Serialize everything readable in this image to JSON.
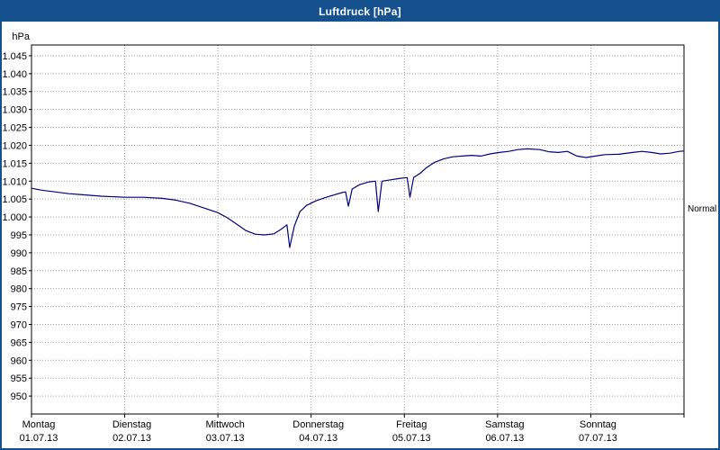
{
  "window": {
    "title": "Luftdruck [hPa]",
    "titlebar_color": "#15518f"
  },
  "colors": {
    "line": "#000080",
    "grid": "#9a9a9a",
    "axis": "#000000",
    "plot_border": "#000000",
    "text": "#000000"
  },
  "chart_data": {
    "type": "line",
    "title": "Luftdruck [hPa]",
    "ylabel": "hPa",
    "xlabel": "",
    "ylim": [
      945,
      1048
    ],
    "xlim": [
      0,
      7
    ],
    "grid": "dotted",
    "legend_position": "none",
    "yticks": [
      {
        "value": 1045,
        "label": "1.045"
      },
      {
        "value": 1040,
        "label": "1.040"
      },
      {
        "value": 1035,
        "label": "1.035"
      },
      {
        "value": 1030,
        "label": "1.030"
      },
      {
        "value": 1025,
        "label": "1.025"
      },
      {
        "value": 1020,
        "label": "1.020"
      },
      {
        "value": 1015,
        "label": "1.015"
      },
      {
        "value": 1010,
        "label": "1.010"
      },
      {
        "value": 1005,
        "label": "1.005"
      },
      {
        "value": 1000,
        "label": "1.000"
      },
      {
        "value": 995,
        "label": "995"
      },
      {
        "value": 990,
        "label": "990"
      },
      {
        "value": 985,
        "label": "985"
      },
      {
        "value": 980,
        "label": "980"
      },
      {
        "value": 975,
        "label": "975"
      },
      {
        "value": 970,
        "label": "970"
      },
      {
        "value": 965,
        "label": "965"
      },
      {
        "value": 960,
        "label": "960"
      },
      {
        "value": 955,
        "label": "955"
      },
      {
        "value": 950,
        "label": "950"
      }
    ],
    "days": [
      {
        "name": "Montag",
        "date": "01.07.13"
      },
      {
        "name": "Dienstag",
        "date": "02.07.13"
      },
      {
        "name": "Mittwoch",
        "date": "03.07.13"
      },
      {
        "name": "Donnerstag",
        "date": "04.07.13"
      },
      {
        "name": "Freitag",
        "date": "05.07.13"
      },
      {
        "name": "Samstag",
        "date": "06.07.13"
      },
      {
        "name": "Sonntag",
        "date": "07.07.13"
      }
    ],
    "series": [
      {
        "name": "Luftdruck",
        "color": "#000080",
        "points": [
          [
            0.0,
            1008.0
          ],
          [
            0.1,
            1007.5
          ],
          [
            0.25,
            1007.0
          ],
          [
            0.4,
            1006.5
          ],
          [
            0.55,
            1006.2
          ],
          [
            0.75,
            1005.8
          ],
          [
            1.0,
            1005.5
          ],
          [
            1.2,
            1005.5
          ],
          [
            1.4,
            1005.2
          ],
          [
            1.55,
            1004.7
          ],
          [
            1.7,
            1003.8
          ],
          [
            1.85,
            1002.5
          ],
          [
            2.0,
            1001.2
          ],
          [
            2.1,
            999.8
          ],
          [
            2.2,
            998.0
          ],
          [
            2.3,
            996.2
          ],
          [
            2.4,
            995.2
          ],
          [
            2.5,
            995.0
          ],
          [
            2.6,
            995.3
          ],
          [
            2.68,
            996.6
          ],
          [
            2.74,
            997.8
          ],
          [
            2.77,
            991.5
          ],
          [
            2.82,
            997.5
          ],
          [
            2.88,
            1001.5
          ],
          [
            2.95,
            1003.2
          ],
          [
            3.05,
            1004.5
          ],
          [
            3.15,
            1005.4
          ],
          [
            3.25,
            1006.2
          ],
          [
            3.33,
            1006.8
          ],
          [
            3.37,
            1007.0
          ],
          [
            3.4,
            1003.0
          ],
          [
            3.44,
            1007.8
          ],
          [
            3.52,
            1009.0
          ],
          [
            3.62,
            1009.8
          ],
          [
            3.69,
            1010.0
          ],
          [
            3.72,
            1001.5
          ],
          [
            3.76,
            1010.0
          ],
          [
            3.86,
            1010.4
          ],
          [
            3.96,
            1010.8
          ],
          [
            4.03,
            1011.0
          ],
          [
            4.06,
            1005.5
          ],
          [
            4.1,
            1011.0
          ],
          [
            4.17,
            1012.2
          ],
          [
            4.24,
            1013.8
          ],
          [
            4.32,
            1015.2
          ],
          [
            4.42,
            1016.2
          ],
          [
            4.52,
            1016.8
          ],
          [
            4.62,
            1017.0
          ],
          [
            4.72,
            1017.2
          ],
          [
            4.82,
            1017.0
          ],
          [
            4.92,
            1017.6
          ],
          [
            5.02,
            1018.0
          ],
          [
            5.12,
            1018.3
          ],
          [
            5.22,
            1018.8
          ],
          [
            5.32,
            1019.0
          ],
          [
            5.45,
            1018.8
          ],
          [
            5.55,
            1018.2
          ],
          [
            5.65,
            1018.0
          ],
          [
            5.75,
            1018.3
          ],
          [
            5.85,
            1017.0
          ],
          [
            5.95,
            1016.6
          ],
          [
            6.05,
            1017.0
          ],
          [
            6.15,
            1017.4
          ],
          [
            6.3,
            1017.5
          ],
          [
            6.45,
            1018.0
          ],
          [
            6.55,
            1018.3
          ],
          [
            6.65,
            1018.0
          ],
          [
            6.75,
            1017.6
          ],
          [
            6.85,
            1017.8
          ],
          [
            6.95,
            1018.3
          ],
          [
            7.0,
            1018.4
          ]
        ]
      }
    ],
    "annotations": [
      {
        "label": "Normal",
        "value": 1002,
        "side": "right"
      }
    ]
  }
}
